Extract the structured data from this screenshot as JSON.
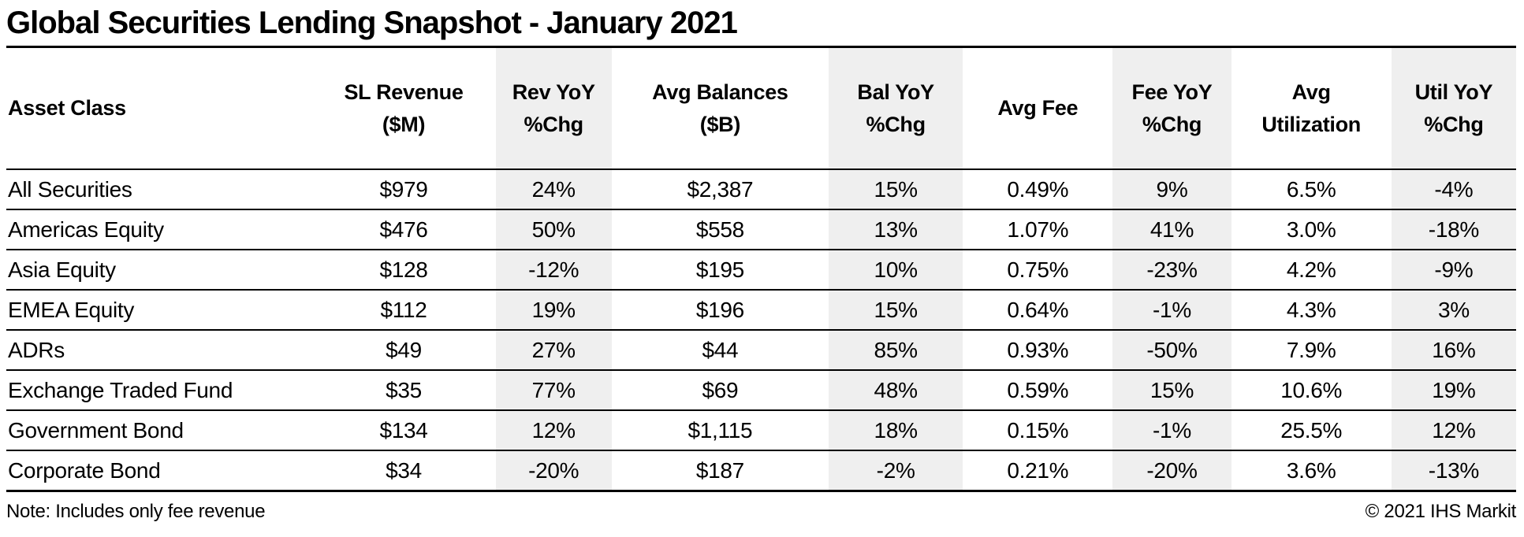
{
  "title": "Global Securities Lending Snapshot - January 2021",
  "colors": {
    "shade": "#efefef",
    "text": "#000000",
    "background": "#ffffff",
    "rule": "#000000"
  },
  "footer": {
    "note": "Note: Includes only fee revenue",
    "copyright": "© 2021 IHS Markit"
  },
  "chart_data": {
    "type": "table",
    "title": "Global Securities Lending Snapshot - January 2021",
    "columns": [
      "Asset Class",
      "SL Revenue\n($M)",
      "Rev YoY\n%Chg",
      "Avg Balances\n($B)",
      "Bal YoY\n%Chg",
      "Avg Fee",
      "Fee YoY\n%Chg",
      "Avg\nUtilization",
      "Util YoY\n%Chg"
    ],
    "column_keys": [
      "asset_class",
      "sl_revenue_m",
      "rev_yoy_chg",
      "avg_balances_b",
      "bal_yoy_chg",
      "avg_fee",
      "fee_yoy_chg",
      "avg_utilization",
      "util_yoy_chg"
    ],
    "rows": [
      [
        "All Securities",
        "$979",
        "24%",
        "$2,387",
        "15%",
        "0.49%",
        "9%",
        "6.5%",
        "-4%"
      ],
      [
        "Americas Equity",
        "$476",
        "50%",
        "$558",
        "13%",
        "1.07%",
        "41%",
        "3.0%",
        "-18%"
      ],
      [
        "Asia Equity",
        "$128",
        "-12%",
        "$195",
        "10%",
        "0.75%",
        "-23%",
        "4.2%",
        "-9%"
      ],
      [
        "EMEA Equity",
        "$112",
        "19%",
        "$196",
        "15%",
        "0.64%",
        "-1%",
        "4.3%",
        "3%"
      ],
      [
        "ADRs",
        "$49",
        "27%",
        "$44",
        "85%",
        "0.93%",
        "-50%",
        "7.9%",
        "16%"
      ],
      [
        "Exchange Traded Fund",
        "$35",
        "77%",
        "$69",
        "48%",
        "0.59%",
        "15%",
        "10.6%",
        "19%"
      ],
      [
        "Government Bond",
        "$134",
        "12%",
        "$1,115",
        "18%",
        "0.15%",
        "-1%",
        "25.5%",
        "12%"
      ],
      [
        "Corporate Bond",
        "$34",
        "-20%",
        "$187",
        "-2%",
        "0.21%",
        "-20%",
        "3.6%",
        "-13%"
      ]
    ],
    "note": "Note: Includes only fee revenue",
    "source": "© 2021 IHS Markit"
  }
}
